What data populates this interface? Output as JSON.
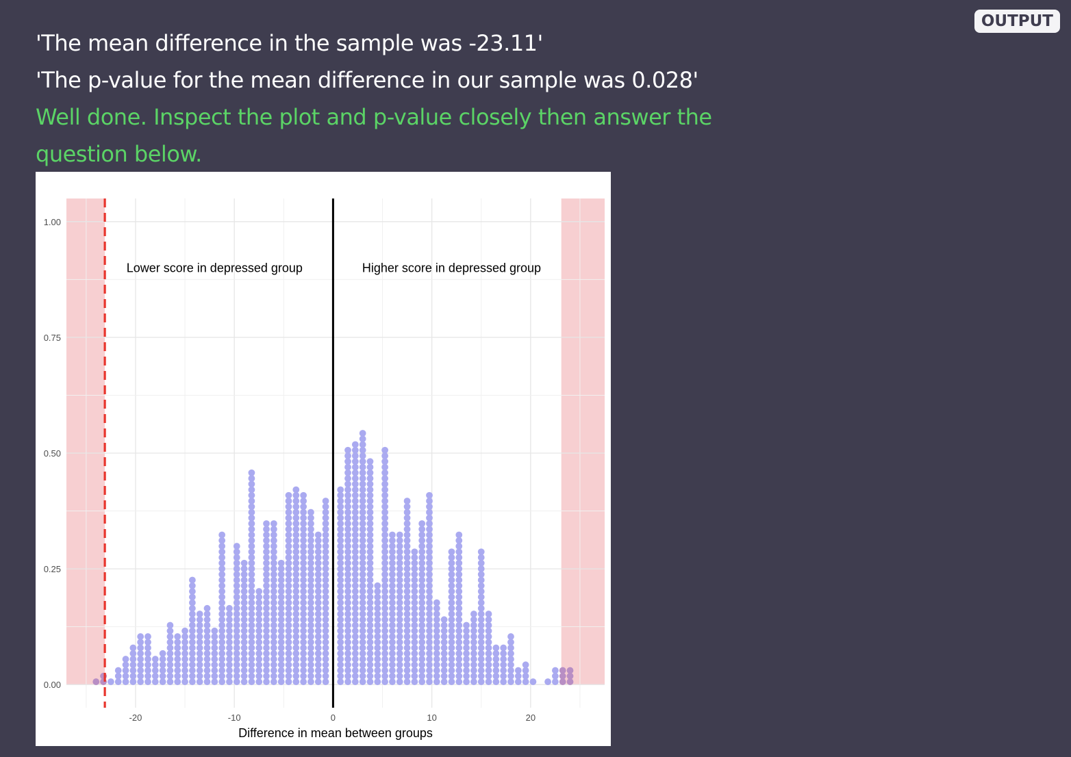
{
  "header": {
    "output_label": "OUTPUT"
  },
  "messages": {
    "mean_difference": "'The mean difference in the sample was -23.11'",
    "p_value": "'The p-value for the mean difference in our sample was 0.028'",
    "feedback": "Well done. Inspect the plot and p-value closely then answer the question below."
  },
  "colors": {
    "background": "#3f3d4f",
    "feedback_text": "#5bd466",
    "dots": "#aaaaf0",
    "tail_dots": "#b88ec4",
    "shade": "#f7cfd1",
    "observed_line": "#e8342c",
    "zero_line": "#000000"
  },
  "chart_data": {
    "type": "dotplot",
    "xlabel": "Difference in mean between groups",
    "ylabel": "",
    "xlim": [
      -27,
      27.5
    ],
    "ylim": [
      -0.05,
      1.05
    ],
    "x_ticks": [
      -20,
      -10,
      0,
      10,
      20
    ],
    "x_tick_labels": [
      "-20",
      "-10",
      "0",
      "10",
      "20"
    ],
    "y_ticks": [
      0,
      0.25,
      0.5,
      0.75,
      1.0
    ],
    "y_tick_labels": [
      "0.00",
      "0.25",
      "0.50",
      "0.75",
      "1.00"
    ],
    "grid": true,
    "observed_difference": -23.11,
    "reference_line": 0,
    "shaded_regions": [
      [
        -27,
        -23.11
      ],
      [
        23.11,
        27.5
      ]
    ],
    "annotations": [
      {
        "text": "Lower score in depressed group",
        "x": -12,
        "y": 0.9
      },
      {
        "text": "Higher score in depressed group",
        "x": 12,
        "y": 0.9
      }
    ],
    "bin_width": 0.75,
    "dot_height_step": 0.0122,
    "dot_stacks": [
      {
        "x": -24.0,
        "count": 1
      },
      {
        "x": -23.25,
        "count": 2
      },
      {
        "x": -22.5,
        "count": 1
      },
      {
        "x": -21.75,
        "count": 3
      },
      {
        "x": -21.0,
        "count": 5
      },
      {
        "x": -20.25,
        "count": 7
      },
      {
        "x": -19.5,
        "count": 9
      },
      {
        "x": -18.75,
        "count": 9
      },
      {
        "x": -18.0,
        "count": 5
      },
      {
        "x": -17.25,
        "count": 6
      },
      {
        "x": -16.5,
        "count": 11
      },
      {
        "x": -15.75,
        "count": 9
      },
      {
        "x": -15.0,
        "count": 10
      },
      {
        "x": -14.25,
        "count": 19
      },
      {
        "x": -13.5,
        "count": 13
      },
      {
        "x": -12.75,
        "count": 14
      },
      {
        "x": -12.0,
        "count": 10
      },
      {
        "x": -11.25,
        "count": 27
      },
      {
        "x": -10.5,
        "count": 14
      },
      {
        "x": -9.75,
        "count": 25
      },
      {
        "x": -9.0,
        "count": 22
      },
      {
        "x": -8.25,
        "count": 38
      },
      {
        "x": -7.5,
        "count": 17
      },
      {
        "x": -6.75,
        "count": 29
      },
      {
        "x": -6.0,
        "count": 29
      },
      {
        "x": -5.25,
        "count": 22
      },
      {
        "x": -4.5,
        "count": 34
      },
      {
        "x": -3.75,
        "count": 35
      },
      {
        "x": -3.0,
        "count": 34
      },
      {
        "x": -2.25,
        "count": 31
      },
      {
        "x": -1.5,
        "count": 27
      },
      {
        "x": -0.75,
        "count": 33
      },
      {
        "x": 0.75,
        "count": 35
      },
      {
        "x": 1.5,
        "count": 42
      },
      {
        "x": 2.25,
        "count": 43
      },
      {
        "x": 3.0,
        "count": 45
      },
      {
        "x": 3.75,
        "count": 40
      },
      {
        "x": 4.5,
        "count": 18
      },
      {
        "x": 5.25,
        "count": 42
      },
      {
        "x": 6.0,
        "count": 27
      },
      {
        "x": 6.75,
        "count": 27
      },
      {
        "x": 7.5,
        "count": 33
      },
      {
        "x": 8.25,
        "count": 24
      },
      {
        "x": 9.0,
        "count": 29
      },
      {
        "x": 9.75,
        "count": 34
      },
      {
        "x": 10.5,
        "count": 15
      },
      {
        "x": 11.25,
        "count": 12
      },
      {
        "x": 12.0,
        "count": 24
      },
      {
        "x": 12.75,
        "count": 27
      },
      {
        "x": 13.5,
        "count": 11
      },
      {
        "x": 14.25,
        "count": 13
      },
      {
        "x": 15.0,
        "count": 24
      },
      {
        "x": 15.75,
        "count": 13
      },
      {
        "x": 16.5,
        "count": 7
      },
      {
        "x": 17.25,
        "count": 7
      },
      {
        "x": 18.0,
        "count": 9
      },
      {
        "x": 18.75,
        "count": 3
      },
      {
        "x": 19.5,
        "count": 4
      },
      {
        "x": 20.25,
        "count": 1
      },
      {
        "x": 21.75,
        "count": 1
      },
      {
        "x": 22.5,
        "count": 3
      },
      {
        "x": 23.25,
        "count": 3
      },
      {
        "x": 24.0,
        "count": 3
      }
    ]
  }
}
